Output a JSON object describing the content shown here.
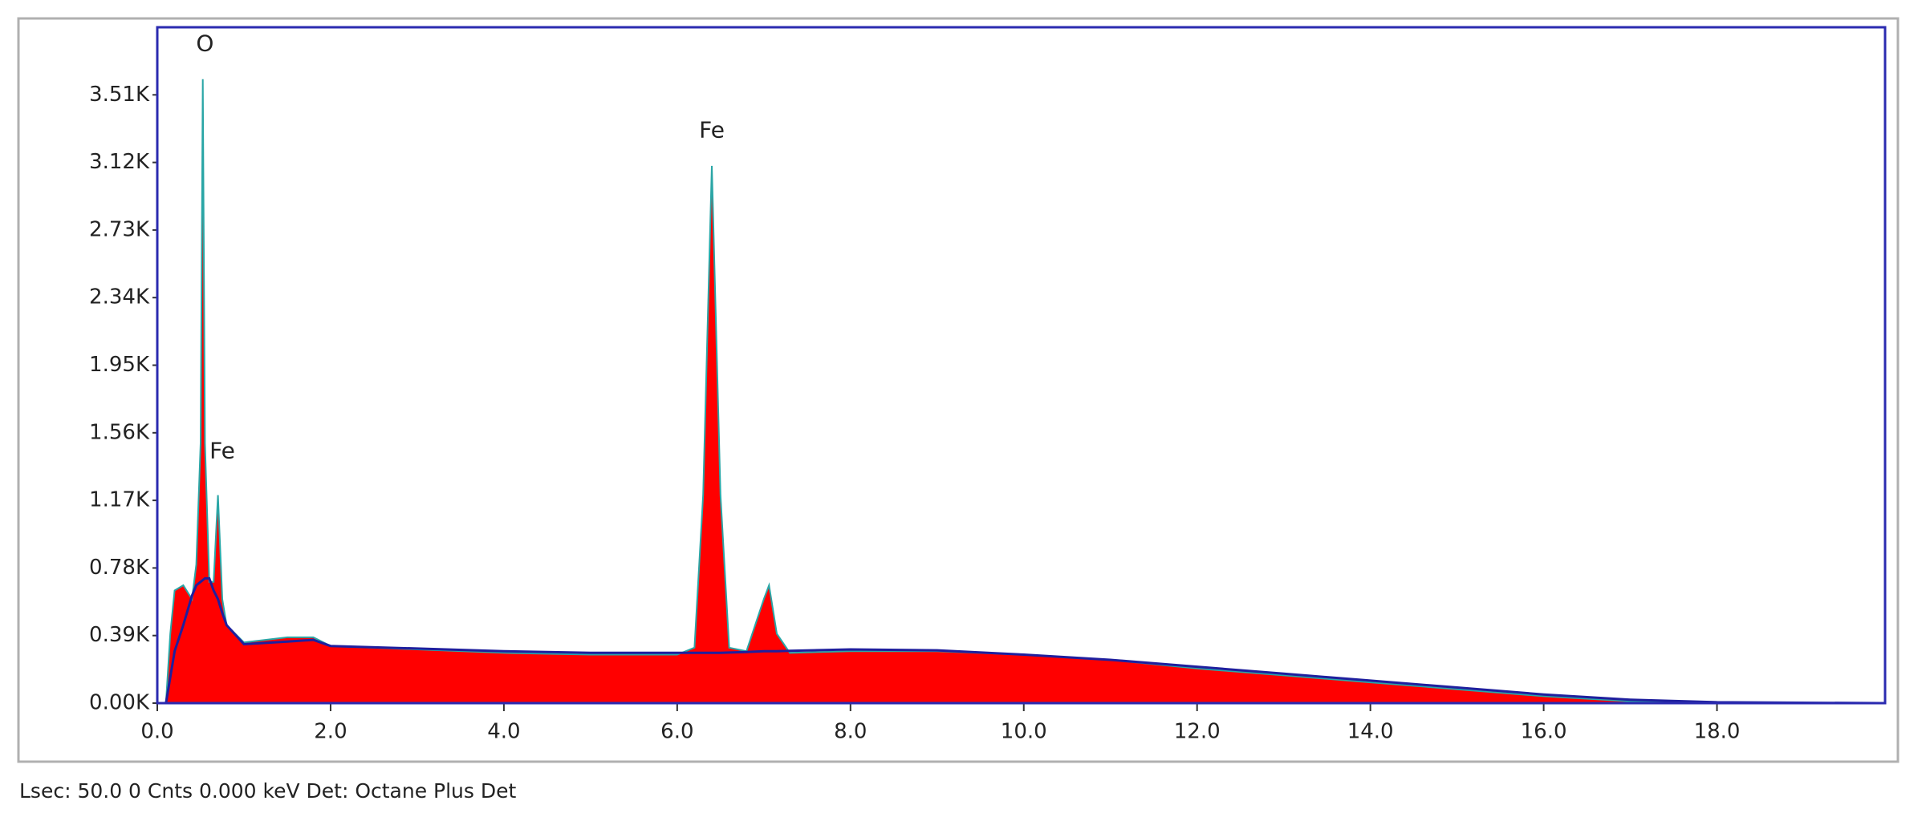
{
  "chart_data": {
    "type": "area",
    "footer": "Lsec: 50.0 0 Cnts  0.000 keV Det: Octane Plus Det",
    "x": [
      0.1,
      0.15,
      0.2,
      0.3,
      0.4,
      0.45,
      0.5,
      0.525,
      0.55,
      0.6,
      0.65,
      0.7,
      0.75,
      0.8,
      1.0,
      1.5,
      1.8,
      2.0,
      3.0,
      4.0,
      5.0,
      6.0,
      6.2,
      6.3,
      6.4,
      6.5,
      6.6,
      6.8,
      7.0,
      7.06,
      7.15,
      7.3,
      8.0,
      9.0,
      10.0,
      11.0,
      12.0,
      13.0,
      14.0,
      15.0,
      16.0,
      17.0,
      18.0,
      19.9
    ],
    "series": [
      {
        "color": "#ff0000",
        "values": [
          0,
          400,
          650,
          680,
          600,
          800,
          1500,
          3600,
          1500,
          700,
          700,
          1200,
          600,
          450,
          350,
          380,
          380,
          330,
          310,
          290,
          280,
          280,
          320,
          1200,
          3100,
          1200,
          320,
          300,
          600,
          680,
          400,
          290,
          300,
          300,
          280,
          250,
          200,
          160,
          120,
          80,
          40,
          10,
          0,
          0
        ]
      },
      {
        "type": "line",
        "color": "#1f1f9e",
        "values": [
          0,
          150,
          300,
          450,
          620,
          680,
          700,
          710,
          720,
          720,
          650,
          600,
          520,
          450,
          340,
          355,
          365,
          330,
          315,
          300,
          290,
          290,
          290,
          290,
          290,
          290,
          292,
          295,
          300,
          300,
          300,
          302,
          310,
          305,
          280,
          250,
          210,
          170,
          130,
          90,
          50,
          20,
          5,
          0
        ]
      }
    ],
    "annotations": [
      {
        "text": "O",
        "x": 0.55,
        "y": 3800
      },
      {
        "text": "Fe",
        "x": 0.75,
        "y": 1450
      },
      {
        "text": "Fe",
        "x": 6.4,
        "y": 3300
      }
    ],
    "xlim": [
      0,
      19.94
    ],
    "ylim": [
      0,
      3900
    ],
    "xticks": [
      {
        "value": 0,
        "label": "0.0"
      },
      {
        "value": 2,
        "label": "2.0"
      },
      {
        "value": 4,
        "label": "4.0"
      },
      {
        "value": 6,
        "label": "6.0"
      },
      {
        "value": 8,
        "label": "8.0"
      },
      {
        "value": 10,
        "label": "10.0"
      },
      {
        "value": 12,
        "label": "12.0"
      },
      {
        "value": 14,
        "label": "14.0"
      },
      {
        "value": 16,
        "label": "16.0"
      },
      {
        "value": 18,
        "label": "18.0"
      }
    ],
    "yticks": [
      {
        "value": 0,
        "label": "0.00K"
      },
      {
        "value": 390,
        "label": "0.39K"
      },
      {
        "value": 780,
        "label": "0.78K"
      },
      {
        "value": 1170,
        "label": "1.17K"
      },
      {
        "value": 1560,
        "label": "1.56K"
      },
      {
        "value": 1950,
        "label": "1.95K"
      },
      {
        "value": 2340,
        "label": "2.34K"
      },
      {
        "value": 2730,
        "label": "2.73K"
      },
      {
        "value": 3120,
        "label": "3.12K"
      },
      {
        "value": 3510,
        "label": "3.51K"
      }
    ]
  }
}
